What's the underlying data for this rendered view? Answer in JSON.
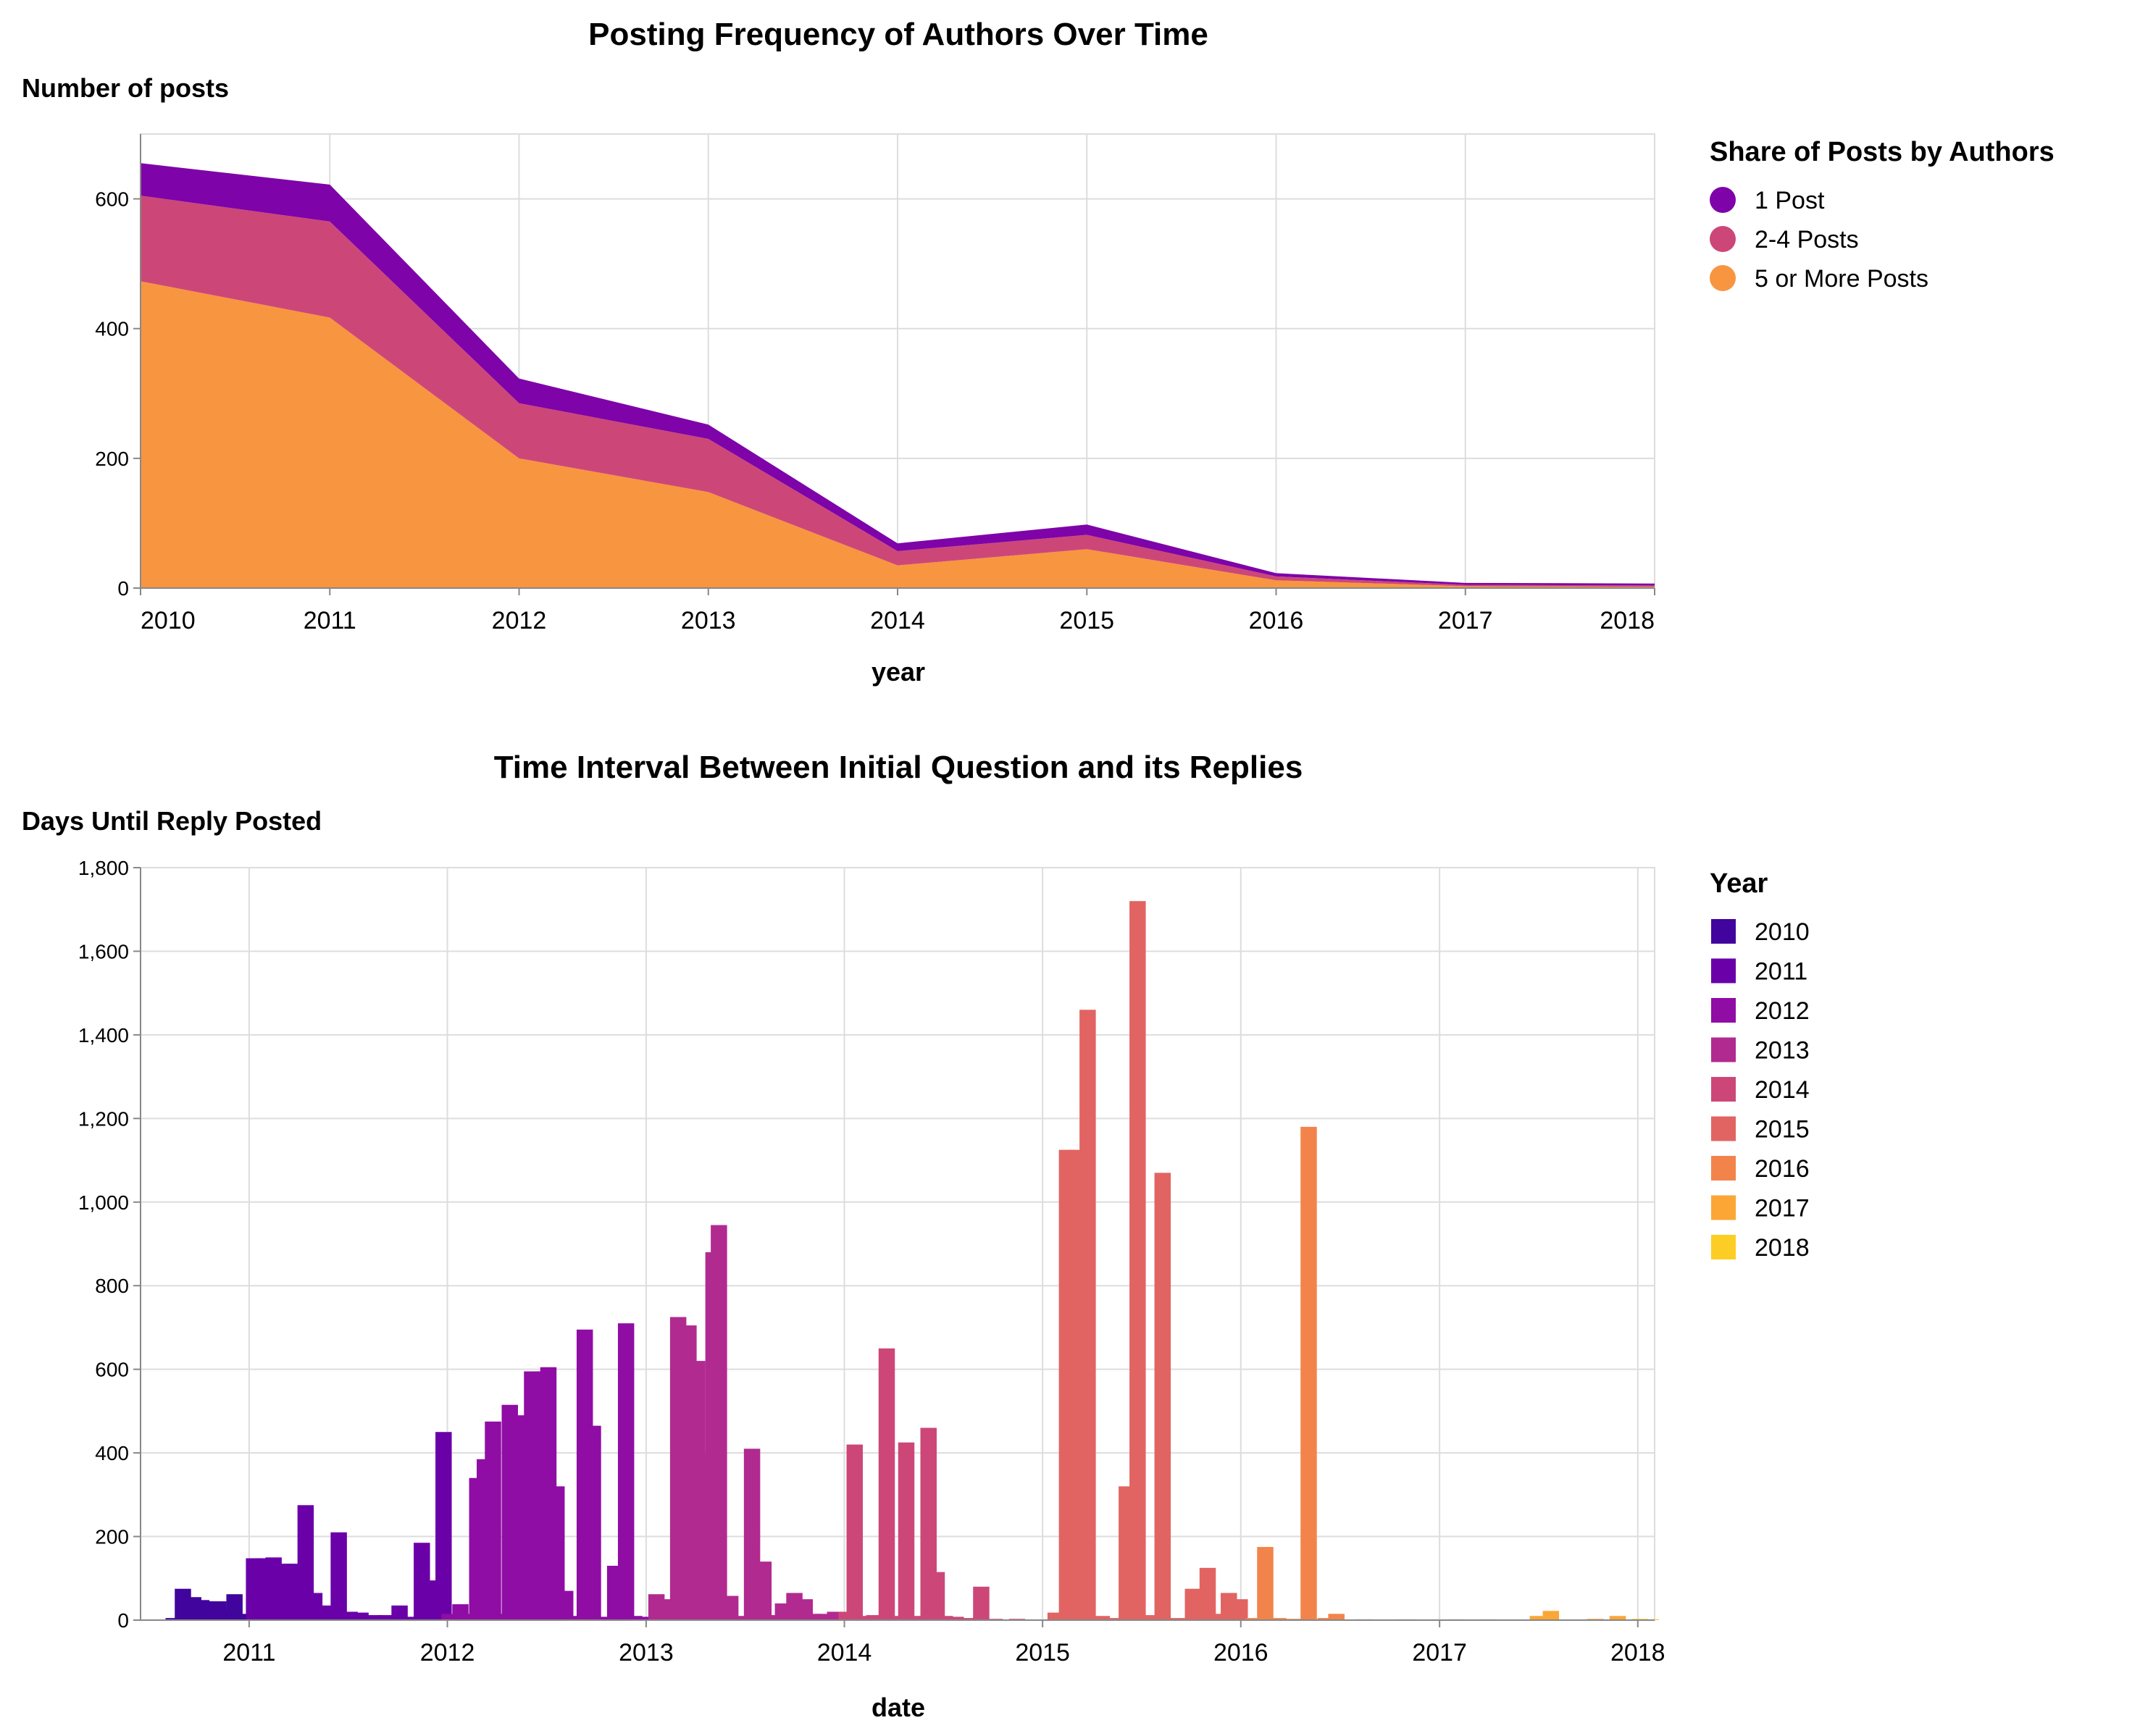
{
  "chart_data": [
    {
      "type": "area",
      "stacked": true,
      "title": "Posting Frequency of Authors Over Time",
      "ylabel": "Number of posts",
      "xlabel": "year",
      "x": [
        "2010",
        "2011",
        "2012",
        "2013",
        "2014",
        "2015",
        "2016",
        "2017",
        "2018"
      ],
      "ylim": [
        0,
        700
      ],
      "yticks": [
        0,
        200,
        400,
        600
      ],
      "grid": true,
      "legend": {
        "title": "Share of Posts by Authors",
        "position": "top-right",
        "shape": "circle",
        "entries": [
          "1 Post",
          "2-4 Posts",
          "5 or More Posts"
        ]
      },
      "series": [
        {
          "name": "5 or More Posts",
          "color": "#f89540",
          "values": [
            473,
            417,
            200,
            148,
            35,
            60,
            12,
            3,
            2
          ]
        },
        {
          "name": "2-4 Posts",
          "color": "#cc4778",
          "values": [
            132,
            148,
            85,
            82,
            22,
            22,
            6,
            2,
            2
          ]
        },
        {
          "name": "1 Post",
          "color": "#7e03a8",
          "values": [
            50,
            57,
            38,
            22,
            12,
            16,
            5,
            3,
            3
          ]
        }
      ]
    },
    {
      "type": "bar",
      "title": "Time Interval Between Initial Question and its Replies",
      "ylabel": "Days Until Reply Posted",
      "xlabel": "date",
      "xlim": [
        "2010-06-15",
        "2018-02-01"
      ],
      "xticks": [
        "2011",
        "2012",
        "2013",
        "2014",
        "2015",
        "2016",
        "2017",
        "2018"
      ],
      "ylim": [
        0,
        1800
      ],
      "yticks": [
        0,
        200,
        400,
        600,
        800,
        1000,
        1200,
        1400,
        1600,
        1800
      ],
      "ytick_labels": [
        "0",
        "200",
        "400",
        "600",
        "800",
        "1,000",
        "1,200",
        "1,400",
        "1,600",
        "1,800"
      ],
      "grid": true,
      "bar_width_days": 30,
      "legend": {
        "title": "Year",
        "position": "top-right",
        "shape": "square",
        "entries": [
          "2010",
          "2011",
          "2012",
          "2013",
          "2014",
          "2015",
          "2016",
          "2017",
          "2018"
        ]
      },
      "year_colors": {
        "2010": "#41049d",
        "2011": "#6a00a8",
        "2012": "#8f0da4",
        "2013": "#b12a90",
        "2014": "#cc4778",
        "2015": "#e16462",
        "2016": "#f2844b",
        "2017": "#fca636",
        "2018": "#fcce25"
      },
      "bars": [
        {
          "date": "2010-08-15",
          "value": 5
        },
        {
          "date": "2010-09-01",
          "value": 75
        },
        {
          "date": "2010-09-20",
          "value": 55
        },
        {
          "date": "2010-10-05",
          "value": 48
        },
        {
          "date": "2010-10-20",
          "value": 45
        },
        {
          "date": "2010-11-05",
          "value": 45
        },
        {
          "date": "2010-11-20",
          "value": 25
        },
        {
          "date": "2010-12-05",
          "value": 62
        },
        {
          "date": "2010-12-25",
          "value": 15
        },
        {
          "date": "2011-01-10",
          "value": 148
        },
        {
          "date": "2011-01-28",
          "value": 148
        },
        {
          "date": "2011-02-15",
          "value": 150
        },
        {
          "date": "2011-03-05",
          "value": 135
        },
        {
          "date": "2011-03-25",
          "value": 135
        },
        {
          "date": "2011-04-15",
          "value": 275
        },
        {
          "date": "2011-05-01",
          "value": 65
        },
        {
          "date": "2011-05-20",
          "value": 35
        },
        {
          "date": "2011-06-15",
          "value": 210
        },
        {
          "date": "2011-07-05",
          "value": 20
        },
        {
          "date": "2011-07-25",
          "value": 18
        },
        {
          "date": "2011-08-20",
          "value": 12
        },
        {
          "date": "2011-09-10",
          "value": 12
        },
        {
          "date": "2011-10-05",
          "value": 35
        },
        {
          "date": "2011-10-28",
          "value": 8
        },
        {
          "date": "2011-11-15",
          "value": 185
        },
        {
          "date": "2011-12-01",
          "value": 90
        },
        {
          "date": "2011-12-10",
          "value": 95
        },
        {
          "date": "2011-12-25",
          "value": 450
        },
        {
          "date": "2012-01-05",
          "value": 15
        },
        {
          "date": "2012-01-25",
          "value": 38
        },
        {
          "date": "2012-02-10",
          "value": 15
        },
        {
          "date": "2012-02-25",
          "value": 340
        },
        {
          "date": "2012-03-10",
          "value": 385
        },
        {
          "date": "2012-03-25",
          "value": 475
        },
        {
          "date": "2012-04-10",
          "value": 15
        },
        {
          "date": "2012-04-25",
          "value": 515
        },
        {
          "date": "2012-05-10",
          "value": 45
        },
        {
          "date": "2012-05-25",
          "value": 490
        },
        {
          "date": "2012-06-05",
          "value": 595
        },
        {
          "date": "2012-06-20",
          "value": 595
        },
        {
          "date": "2012-07-05",
          "value": 605
        },
        {
          "date": "2012-07-20",
          "value": 320
        },
        {
          "date": "2012-08-05",
          "value": 70
        },
        {
          "date": "2012-08-25",
          "value": 10
        },
        {
          "date": "2012-09-10",
          "value": 695
        },
        {
          "date": "2012-09-25",
          "value": 465
        },
        {
          "date": "2012-10-15",
          "value": 8
        },
        {
          "date": "2012-11-05",
          "value": 130
        },
        {
          "date": "2012-11-25",
          "value": 710
        },
        {
          "date": "2012-12-10",
          "value": 10
        },
        {
          "date": "2012-12-25",
          "value": 8
        },
        {
          "date": "2013-01-20",
          "value": 62
        },
        {
          "date": "2013-02-10",
          "value": 50
        },
        {
          "date": "2013-03-01",
          "value": 725
        },
        {
          "date": "2013-03-20",
          "value": 705
        },
        {
          "date": "2013-04-05",
          "value": 620
        },
        {
          "date": "2013-04-15",
          "value": 400
        },
        {
          "date": "2013-04-25",
          "value": 140
        },
        {
          "date": "2013-05-05",
          "value": 880
        },
        {
          "date": "2013-05-15",
          "value": 945
        },
        {
          "date": "2013-06-05",
          "value": 58
        },
        {
          "date": "2013-06-25",
          "value": 10
        },
        {
          "date": "2013-07-15",
          "value": 410
        },
        {
          "date": "2013-08-05",
          "value": 140
        },
        {
          "date": "2013-08-25",
          "value": 12
        },
        {
          "date": "2013-09-10",
          "value": 40
        },
        {
          "date": "2013-10-01",
          "value": 65
        },
        {
          "date": "2013-10-20",
          "value": 50
        },
        {
          "date": "2013-11-05",
          "value": 15
        },
        {
          "date": "2013-11-25",
          "value": 15
        },
        {
          "date": "2013-12-15",
          "value": 20
        },
        {
          "date": "2014-01-05",
          "value": 20
        },
        {
          "date": "2014-01-20",
          "value": 420
        },
        {
          "date": "2014-02-10",
          "value": 10
        },
        {
          "date": "2014-02-25",
          "value": 12
        },
        {
          "date": "2014-03-20",
          "value": 650
        },
        {
          "date": "2014-04-05",
          "value": 10
        },
        {
          "date": "2014-04-25",
          "value": 425
        },
        {
          "date": "2014-05-15",
          "value": 10
        },
        {
          "date": "2014-06-05",
          "value": 460
        },
        {
          "date": "2014-06-20",
          "value": 115
        },
        {
          "date": "2014-07-05",
          "value": 10
        },
        {
          "date": "2014-07-25",
          "value": 8
        },
        {
          "date": "2014-08-15",
          "value": 5
        },
        {
          "date": "2014-09-10",
          "value": 80
        },
        {
          "date": "2014-10-05",
          "value": 3
        },
        {
          "date": "2014-11-15",
          "value": 3
        },
        {
          "date": "2015-01-25",
          "value": 18
        },
        {
          "date": "2015-02-15",
          "value": 1125
        },
        {
          "date": "2015-03-05",
          "value": 1125
        },
        {
          "date": "2015-03-25",
          "value": 1460
        },
        {
          "date": "2015-04-20",
          "value": 10
        },
        {
          "date": "2015-05-15",
          "value": 5
        },
        {
          "date": "2015-06-05",
          "value": 320
        },
        {
          "date": "2015-06-25",
          "value": 1720
        },
        {
          "date": "2015-07-15",
          "value": 12
        },
        {
          "date": "2015-08-10",
          "value": 1070
        },
        {
          "date": "2015-09-05",
          "value": 5
        },
        {
          "date": "2015-10-05",
          "value": 75
        },
        {
          "date": "2015-11-01",
          "value": 125
        },
        {
          "date": "2015-11-20",
          "value": 15
        },
        {
          "date": "2015-12-10",
          "value": 65
        },
        {
          "date": "2015-12-30",
          "value": 50
        },
        {
          "date": "2016-01-25",
          "value": 5
        },
        {
          "date": "2016-02-15",
          "value": 175
        },
        {
          "date": "2016-03-10",
          "value": 5
        },
        {
          "date": "2016-04-05",
          "value": 3
        },
        {
          "date": "2016-05-05",
          "value": 1180
        },
        {
          "date": "2016-06-05",
          "value": 5
        },
        {
          "date": "2016-06-25",
          "value": 15
        },
        {
          "date": "2016-08-15",
          "value": 2
        },
        {
          "date": "2016-11-01",
          "value": 2
        },
        {
          "date": "2017-02-01",
          "value": 2
        },
        {
          "date": "2017-04-01",
          "value": 2
        },
        {
          "date": "2017-07-01",
          "value": 10
        },
        {
          "date": "2017-07-25",
          "value": 22
        },
        {
          "date": "2017-10-15",
          "value": 3
        },
        {
          "date": "2017-11-25",
          "value": 10
        },
        {
          "date": "2018-01-05",
          "value": 3
        },
        {
          "date": "2018-01-25",
          "value": 2
        }
      ]
    }
  ]
}
